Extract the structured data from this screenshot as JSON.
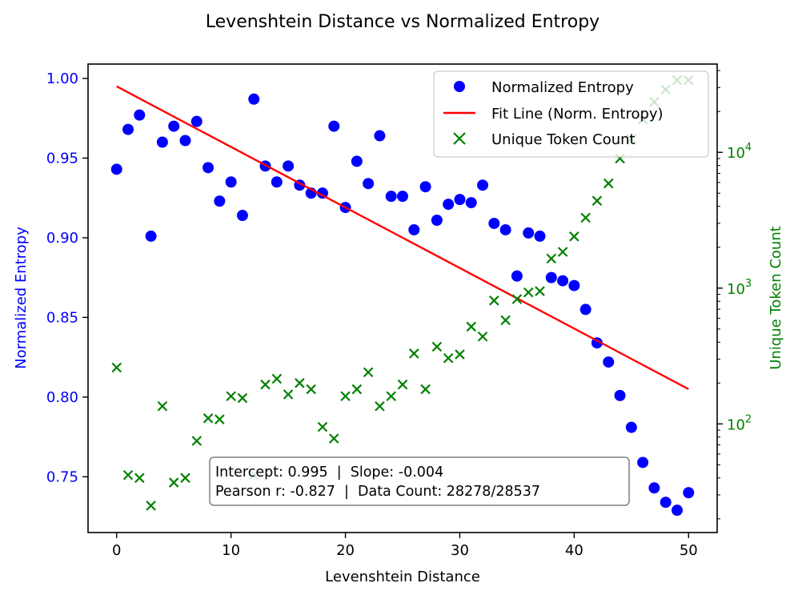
{
  "chart_data": {
    "type": "scatter",
    "title": "Levenshtein Distance vs Normalized Entropy",
    "xlabel": "Levenshtein Distance",
    "ylabel": "Normalized Entropy",
    "y2label": "Unique Token Count",
    "xlim": [
      -2.5,
      52.5
    ],
    "ylim": [
      0.715,
      1.009
    ],
    "y2lim_log": [
      1.2,
      4.65
    ],
    "y2scale": "log",
    "grid": false,
    "legend_position": "top-right",
    "x_ticks": [
      0,
      10,
      20,
      30,
      40,
      50
    ],
    "x_tick_labels": [
      "0",
      "10",
      "20",
      "30",
      "40",
      "50"
    ],
    "y_ticks": [
      0.75,
      0.8,
      0.85,
      0.9,
      0.95,
      1.0
    ],
    "y_tick_labels": [
      "0.75",
      "0.80",
      "0.85",
      "0.90",
      "0.95",
      "1.00"
    ],
    "y2_ticks": [
      100,
      1000,
      10000
    ],
    "y2_tick_exponents": [
      "2",
      "3",
      "4"
    ],
    "colors": {
      "entropy": "#0000ff",
      "fit": "#ff0000",
      "tokens": "#008000",
      "left_axis": "#0000ff",
      "right_axis": "#008000"
    },
    "series": [
      {
        "name": "Normalized Entropy",
        "kind": "scatter-circle",
        "axis": "left",
        "x": [
          0,
          1,
          2,
          3,
          4,
          5,
          6,
          7,
          8,
          9,
          10,
          11,
          12,
          13,
          14,
          15,
          16,
          17,
          18,
          19,
          20,
          21,
          22,
          23,
          24,
          25,
          26,
          27,
          28,
          29,
          30,
          31,
          32,
          33,
          34,
          35,
          36,
          37,
          38,
          39,
          40,
          41,
          42,
          43,
          44,
          45,
          46,
          47,
          48,
          49,
          50
        ],
        "y": [
          0.943,
          0.968,
          0.977,
          0.901,
          0.96,
          0.97,
          0.961,
          0.973,
          0.944,
          0.923,
          0.935,
          0.914,
          0.987,
          0.945,
          0.935,
          0.945,
          0.933,
          0.928,
          0.928,
          0.97,
          0.919,
          0.948,
          0.934,
          0.964,
          0.926,
          0.926,
          0.905,
          0.932,
          0.911,
          0.921,
          0.924,
          0.922,
          0.933,
          0.909,
          0.905,
          0.876,
          0.903,
          0.901,
          0.875,
          0.873,
          0.87,
          0.855,
          0.834,
          0.822,
          0.801,
          0.781,
          0.759,
          0.743,
          0.734,
          0.729,
          0.74
        ]
      },
      {
        "name": "Fit Line (Norm. Entropy)",
        "kind": "line",
        "axis": "left",
        "x": [
          0,
          50
        ],
        "y": [
          0.995,
          0.805
        ]
      },
      {
        "name": "Unique Token Count",
        "kind": "scatter-x",
        "axis": "right",
        "x": [
          0,
          1,
          2,
          3,
          4,
          5,
          6,
          7,
          8,
          9,
          10,
          11,
          12,
          13,
          14,
          15,
          16,
          17,
          18,
          19,
          20,
          21,
          22,
          23,
          24,
          25,
          26,
          27,
          28,
          29,
          30,
          31,
          32,
          33,
          34,
          35,
          36,
          37,
          38,
          39,
          40,
          41,
          42,
          43,
          44,
          45,
          46,
          47,
          48,
          49,
          50
        ],
        "y": [
          260,
          42,
          40,
          25,
          135,
          37,
          40,
          75,
          110,
          108,
          160,
          155,
          42,
          195,
          215,
          165,
          200,
          180,
          95,
          78,
          160,
          180,
          240,
          135,
          160,
          195,
          330,
          180,
          370,
          305,
          325,
          520,
          440,
          810,
          580,
          830,
          930,
          950,
          1650,
          1850,
          2400,
          3300,
          4400,
          5900,
          9000,
          12500,
          17500,
          23500,
          29000,
          34000,
          34000
        ]
      }
    ],
    "annotation": {
      "line1": "Intercept: 0.995  |  Slope: -0.004",
      "line2": "Pearson r: -0.827  |  Data Count: 28278/28537"
    }
  }
}
